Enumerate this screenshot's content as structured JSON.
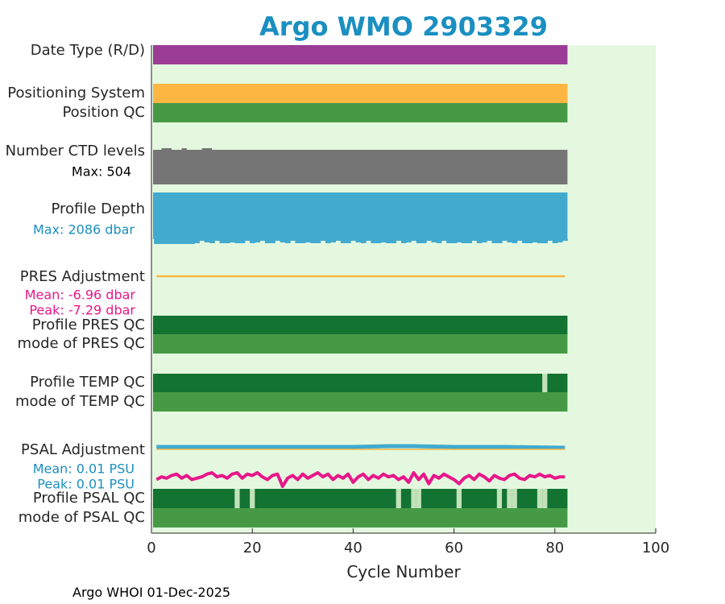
{
  "chart_data": {
    "type": "timeline",
    "title": "Argo WMO 2903329",
    "xlabel": "Cycle Number",
    "xlim": [
      0,
      100
    ],
    "xticks": [
      0,
      20,
      40,
      60,
      80,
      100
    ],
    "grid": false,
    "last_cycle": 82.5,
    "rows": [
      {
        "id": "date-type",
        "label": "Date Type (R/D)",
        "color": "#9b3c96"
      },
      {
        "id": "positioning-system",
        "label": "Positioning System",
        "color": "#fdb642"
      },
      {
        "id": "position-qc",
        "label": "Position QC",
        "color": "#469a46"
      },
      {
        "id": "number-ctd-levels",
        "label": "Number CTD levels",
        "color": "#757575"
      },
      {
        "id": "profile-depth",
        "label": "Profile Depth",
        "color": "#42aacf"
      },
      {
        "id": "pres-adjustment",
        "label": "PRES Adjustment",
        "color": "#fdb642"
      },
      {
        "id": "profile-pres-qc",
        "label": "Profile PRES QC",
        "color": "#137330"
      },
      {
        "id": "mode-pres-qc",
        "label": "mode of PRES QC",
        "color": "#469a46"
      },
      {
        "id": "profile-temp-qc",
        "label": "Profile TEMP QC",
        "color": "#137330"
      },
      {
        "id": "mode-temp-qc",
        "label": "mode of TEMP QC",
        "color": "#469a46"
      },
      {
        "id": "psal-adjustment",
        "label": "PSAL Adjustment",
        "color": "#42aacf"
      },
      {
        "id": "profile-psal-qc",
        "label": "Profile PSAL QC",
        "color": "#137330"
      },
      {
        "id": "mode-psal-qc",
        "label": "mode of PSAL QC",
        "color": "#469a46"
      }
    ],
    "annotations": {
      "ctd_max": {
        "text": "Max: 504",
        "color": "#000000"
      },
      "depth_max": {
        "text": "Max: 2086 dbar",
        "color": "#1a8fc0"
      },
      "pres_mean": {
        "text": "Mean: -6.96 dbar",
        "color": "#e8178a"
      },
      "pres_peak": {
        "text": "Peak: -7.29 dbar",
        "color": "#e8178a"
      },
      "psal_mean": {
        "text": "Mean: 0.01 PSU",
        "color": "#1a8fc0"
      },
      "psal_peak": {
        "text": "Peak: 0.01 PSU",
        "color": "#1a8fc0"
      }
    },
    "temp_qc_flagged_cycles": [
      78
    ],
    "psal_qc_flagged_cycles": [
      17,
      20,
      49,
      52,
      53,
      61,
      69,
      71,
      72,
      77,
      78
    ],
    "psal_drift_series": [
      0.5,
      0.7,
      0.6,
      0.8,
      0.9,
      0.6,
      0.8,
      0.5,
      0.6,
      0.7,
      0.9,
      1.0,
      0.7,
      0.8,
      0.6,
      0.9,
      1.0,
      0.6,
      0.9,
      0.8,
      1.0,
      0.7,
      0.5,
      0.8,
      0.9,
      0.0,
      0.6,
      0.8,
      0.5,
      0.9,
      0.6,
      0.8,
      1.0,
      0.7,
      0.9,
      0.5,
      0.8,
      0.6,
      0.9,
      0.3,
      0.7,
      0.9,
      0.5,
      0.8,
      0.6,
      0.9,
      0.7,
      0.8,
      0.5,
      0.7,
      0.3,
      1.0,
      0.5,
      0.9,
      0.2,
      0.8,
      0.6,
      0.9,
      0.7,
      0.5,
      0.2,
      0.6,
      0.8,
      0.5,
      0.9,
      0.7,
      0.4,
      0.8,
      0.6,
      0.5,
      0.8,
      0.9,
      0.6,
      0.5,
      0.8,
      0.7,
      0.9,
      0.7,
      0.8,
      0.6,
      0.7,
      0.7
    ]
  },
  "footer": {
    "text": "Argo WHOI 01-Dec-2025"
  }
}
